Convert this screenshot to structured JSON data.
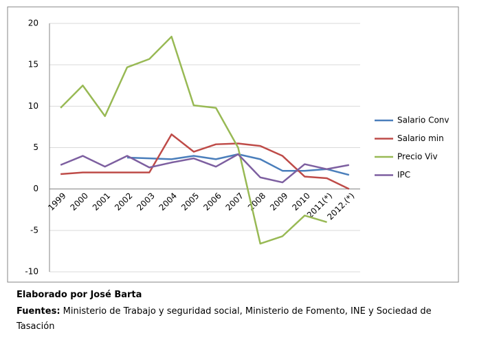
{
  "chart_data": {
    "type": "line",
    "categories": [
      "1999",
      "2000",
      "2001",
      "2002",
      "2003",
      "2004",
      "2005",
      "2006",
      "2007",
      "2008",
      "2009",
      "2010",
      "2011(*)",
      "2012.(*)"
    ],
    "series": [
      {
        "name": "Salario Conv",
        "color": "#4a7ebb",
        "values": [
          null,
          null,
          null,
          3.8,
          3.7,
          3.6,
          4.0,
          3.6,
          4.2,
          3.6,
          2.2,
          2.2,
          2.4,
          1.7
        ]
      },
      {
        "name": "Salario min",
        "color": "#be4b48",
        "values": [
          1.8,
          2.0,
          2.0,
          2.0,
          2.0,
          6.6,
          4.5,
          5.4,
          5.5,
          5.2,
          4.0,
          1.5,
          1.3,
          0
        ]
      },
      {
        "name": "Precio Viv",
        "color": "#98b954",
        "values": [
          9.8,
          12.5,
          8.8,
          14.7,
          15.7,
          18.4,
          10.1,
          9.8,
          5.0,
          -6.6,
          -5.7,
          -3.2,
          -4.0,
          null
        ]
      },
      {
        "name": "IPC",
        "color": "#7d5fa0",
        "values": [
          2.9,
          4.0,
          2.7,
          4.0,
          2.6,
          3.2,
          3.7,
          2.7,
          4.2,
          1.4,
          0.8,
          3.0,
          2.4,
          2.9
        ]
      }
    ],
    "ylim": [
      -10,
      20
    ],
    "yticks": [
      -10,
      -5,
      0,
      5,
      10,
      15,
      20
    ],
    "grid": true,
    "legend": "right"
  },
  "footnote": {
    "author": "Elaborado por José Barta",
    "sources_label": "Fuentes:",
    "sources": "Ministerio de Trabajo y seguridad social, Ministerio de Fomento, INE y Sociedad de Tasación"
  }
}
